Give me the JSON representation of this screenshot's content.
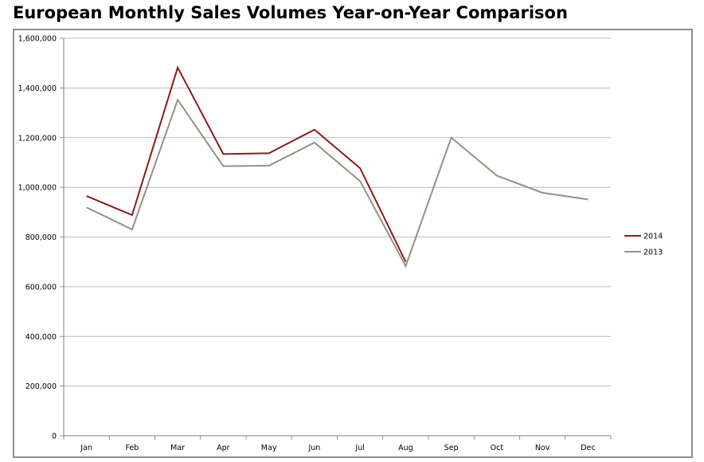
{
  "chart_data": {
    "type": "line",
    "title": "European Monthly Sales Volumes Year-on-Year Comparison",
    "xlabel": "",
    "ylabel": "",
    "categories": [
      "Jan",
      "Feb",
      "Mar",
      "Apr",
      "May",
      "Jun",
      "Jul",
      "Aug",
      "Sep",
      "Oct",
      "Nov",
      "Dec"
    ],
    "ylim": [
      0,
      1600000
    ],
    "yticks": [
      0,
      200000,
      400000,
      600000,
      800000,
      1000000,
      1200000,
      1400000,
      1600000
    ],
    "ytick_labels": [
      "0",
      "200,000",
      "400,000",
      "600,000",
      "800,000",
      "1,000,000",
      "1,200,000",
      "1,400,000",
      "1,600,000"
    ],
    "grid": true,
    "legend_position": "right",
    "series": [
      {
        "name": "2014",
        "color": "#8b1a1a",
        "values": [
          965000,
          888000,
          1482000,
          1134000,
          1137000,
          1232000,
          1077000,
          700000,
          null,
          null,
          null,
          null
        ]
      },
      {
        "name": "2013",
        "color": "#969084",
        "values": [
          919000,
          830000,
          1352000,
          1085000,
          1087000,
          1180000,
          1025000,
          683000,
          1200000,
          1047000,
          978000,
          951000
        ]
      }
    ]
  }
}
